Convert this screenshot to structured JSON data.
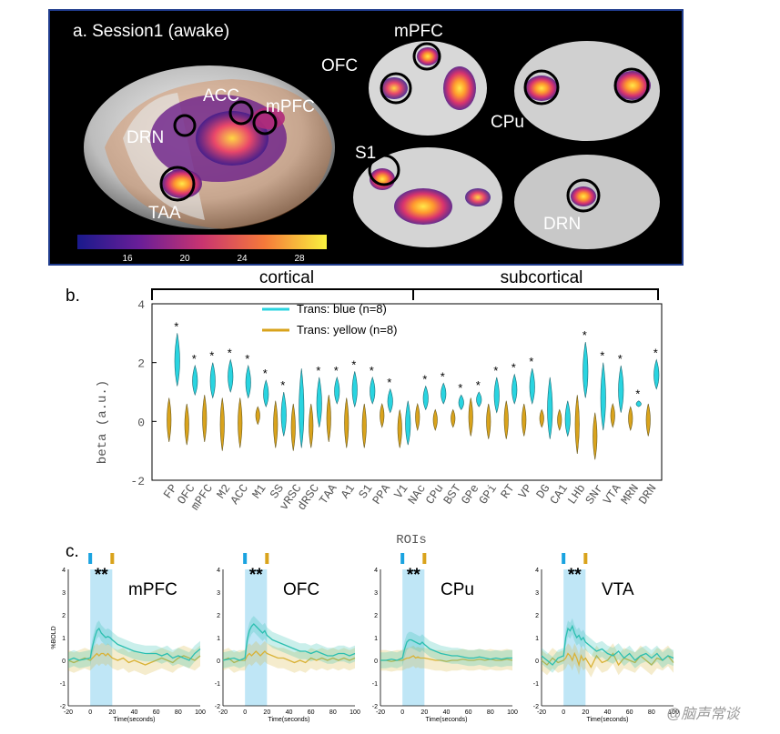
{
  "panel_a": {
    "label": "a. Session1 (awake)",
    "rois_3d": [
      "ACC",
      "mPFC",
      "DRN",
      "TAA"
    ],
    "rois_slices": [
      "mPFC",
      "OFC",
      "CPu",
      "S1",
      "DRN"
    ],
    "colorbar_ticks": [
      "16",
      "20",
      "24",
      "28"
    ]
  },
  "panel_b": {
    "label": "b.",
    "brackets": [
      "cortical",
      "subcortical"
    ]
  },
  "panel_c": {
    "label": "c.",
    "plots": [
      "mPFC",
      "OFC",
      "CPu",
      "VTA"
    ],
    "significance": "**"
  },
  "watermark": "@脑声常谈",
  "chart_data": [
    {
      "type": "box",
      "title": "",
      "xlabel": "ROIs",
      "ylabel": "beta (a.u.)",
      "ylim": [
        -2,
        4
      ],
      "yticks": [
        -2,
        0,
        2,
        4
      ],
      "categories": [
        "FP",
        "OFC",
        "mPFC",
        "M2",
        "ACC",
        "M1",
        "SS",
        "vRSC",
        "dRSC",
        "TAA",
        "A1",
        "S1",
        "PPA",
        "V1",
        "NAc",
        "CPu",
        "BST",
        "GPe",
        "GPi",
        "RT",
        "VP",
        "DG",
        "CA1",
        "LHb",
        "SNr",
        "VTA",
        "MRN",
        "DRN"
      ],
      "significant": [
        true,
        true,
        true,
        true,
        true,
        true,
        true,
        false,
        true,
        true,
        true,
        true,
        true,
        false,
        true,
        true,
        true,
        true,
        true,
        true,
        true,
        false,
        false,
        true,
        true,
        true,
        true,
        true
      ],
      "series": [
        {
          "name": "Trans: blue (n=8)",
          "color": "#29d4e0",
          "min": [
            1.2,
            0.9,
            0.8,
            1.0,
            0.8,
            0.5,
            -0.5,
            -0.9,
            -0.2,
            0.6,
            0.5,
            0.6,
            0.3,
            -0.8,
            0.4,
            0.6,
            0.4,
            0.5,
            0.3,
            0.6,
            0.6,
            -0.6,
            -0.5,
            0.8,
            -0.3,
            0.3,
            0.5,
            1.1
          ],
          "max": [
            3.0,
            1.9,
            2.0,
            2.1,
            1.9,
            1.4,
            1.0,
            1.8,
            1.5,
            1.5,
            1.7,
            1.5,
            1.1,
            0.7,
            1.2,
            1.3,
            0.9,
            1.0,
            1.5,
            1.6,
            1.8,
            1.5,
            0.7,
            2.7,
            2.0,
            1.9,
            0.7,
            2.1
          ]
        },
        {
          "name": "Trans: yellow (n=8)",
          "color": "#d9a31c",
          "min": [
            -0.7,
            -0.8,
            -0.7,
            -1.0,
            -0.9,
            -0.1,
            -0.9,
            -1.0,
            -0.9,
            -0.7,
            -0.9,
            -0.9,
            -0.2,
            -0.9,
            -0.3,
            -0.3,
            -0.2,
            -0.5,
            -0.6,
            -0.6,
            -0.5,
            -0.2,
            -0.3,
            -1.1,
            -1.3,
            -0.2,
            -0.3,
            -0.5
          ],
          "max": [
            0.8,
            0.6,
            0.9,
            0.8,
            0.8,
            0.5,
            0.7,
            0.6,
            0.6,
            0.9,
            0.8,
            0.6,
            0.6,
            0.4,
            0.6,
            0.4,
            0.4,
            0.8,
            0.6,
            0.7,
            0.6,
            0.4,
            0.4,
            0.9,
            0.3,
            0.6,
            0.5,
            0.6
          ]
        }
      ]
    },
    {
      "type": "line",
      "xlabel": "Time(seconds)",
      "ylabel": "%BOLD",
      "xlim": [
        -20,
        100
      ],
      "ylim": [
        -2,
        4
      ],
      "xticks": [
        -20,
        0,
        20,
        40,
        60,
        80,
        100
      ],
      "yticks": [
        -2,
        -1,
        0,
        1,
        2,
        3,
        4
      ],
      "stim_window": [
        0,
        20
      ],
      "time": [
        -20,
        -15,
        -10,
        -5,
        0,
        2,
        4,
        6,
        8,
        10,
        12,
        14,
        16,
        18,
        20,
        25,
        30,
        35,
        40,
        45,
        50,
        55,
        60,
        65,
        70,
        75,
        80,
        85,
        90,
        95,
        100
      ],
      "series": [
        {
          "name": "mPFC",
          "color": "#2bbfb0",
          "values": [
            0,
            0.1,
            0,
            0.05,
            0.1,
            0.6,
            1.0,
            1.3,
            1.4,
            1.2,
            1.1,
            1.0,
            1.05,
            1.0,
            0.9,
            0.7,
            0.6,
            0.5,
            0.4,
            0.35,
            0.3,
            0.3,
            0.3,
            0.2,
            0.3,
            0.1,
            0.2,
            0.1,
            0.0,
            0.3,
            0.5
          ]
        },
        {
          "name": "mPFC yellow",
          "color": "#d9b236",
          "values": [
            0,
            -0.1,
            0,
            0.1,
            0,
            0.1,
            0.2,
            0.3,
            0.2,
            0.3,
            0.3,
            0.2,
            0.3,
            0.2,
            0.1,
            0,
            0.1,
            -0.1,
            0,
            -0.1,
            -0.2,
            -0.1,
            0,
            0.1,
            0,
            -0.1,
            0.1,
            0.2,
            0.1,
            0,
            0.2
          ]
        },
        {
          "name": "OFC",
          "color": "#2bbfb0",
          "values": [
            0,
            0.05,
            0.1,
            0,
            0.1,
            0.9,
            1.3,
            1.5,
            1.6,
            1.5,
            1.4,
            1.3,
            1.2,
            1.3,
            1.1,
            0.9,
            0.8,
            0.7,
            0.6,
            0.5,
            0.4,
            0.4,
            0.3,
            0.4,
            0.3,
            0.2,
            0.2,
            0.3,
            0.3,
            0.2,
            0.3
          ]
        },
        {
          "name": "OFC yellow",
          "color": "#d9b236",
          "values": [
            0,
            0.1,
            -0.1,
            0,
            0,
            0.2,
            0.3,
            0.2,
            0.3,
            0.4,
            0.3,
            0.2,
            0.3,
            0.4,
            0.3,
            0.2,
            0.1,
            0.1,
            0,
            -0.1,
            0,
            -0.1,
            0.1,
            0,
            0.1,
            0,
            0.1,
            0,
            0.1,
            0,
            0.1
          ]
        },
        {
          "name": "CPu",
          "color": "#2bbfb0",
          "values": [
            0,
            0,
            0.05,
            0,
            0.1,
            0.5,
            0.8,
            0.9,
            0.9,
            0.85,
            0.8,
            0.75,
            0.7,
            0.8,
            0.7,
            0.5,
            0.4,
            0.3,
            0.25,
            0.2,
            0.2,
            0.15,
            0.1,
            0.1,
            0.15,
            0.1,
            0.05,
            0.1,
            0.05,
            0.1,
            0.1
          ]
        },
        {
          "name": "CPu yellow",
          "color": "#d9b236",
          "values": [
            0,
            0,
            -0.05,
            0,
            0,
            0.05,
            0.1,
            0.1,
            0.15,
            0.2,
            0.1,
            0.15,
            0.1,
            0.1,
            0.1,
            0.05,
            0,
            0,
            -0.05,
            0,
            0,
            0.05,
            0,
            0,
            0.05,
            0,
            0.05,
            0,
            0,
            0.05,
            0
          ]
        },
        {
          "name": "VTA",
          "color": "#2bbfb0",
          "values": [
            0.2,
            0,
            -0.2,
            0.1,
            0.2,
            1.0,
            1.4,
            1.3,
            1.5,
            1.2,
            1.0,
            1.1,
            0.9,
            1.0,
            0.8,
            0.6,
            0.4,
            0.5,
            0.3,
            0.2,
            0.4,
            0.1,
            0.3,
            0.0,
            0.2,
            0.3,
            0.1,
            0.3,
            0.0,
            0.2,
            0.1
          ]
        },
        {
          "name": "VTA yellow",
          "color": "#d9b236",
          "values": [
            0,
            -0.2,
            0.1,
            -0.1,
            0,
            0.1,
            0.3,
            0.2,
            0.0,
            0.3,
            0.1,
            -0.2,
            0.2,
            0.0,
            0.1,
            -0.3,
            0.2,
            -0.1,
            0.0,
            0.3,
            -0.2,
            0.1,
            0.0,
            -0.1,
            0.2,
            0.0,
            -0.2,
            0.1,
            0.0,
            0.2,
            -0.1
          ]
        }
      ]
    }
  ]
}
